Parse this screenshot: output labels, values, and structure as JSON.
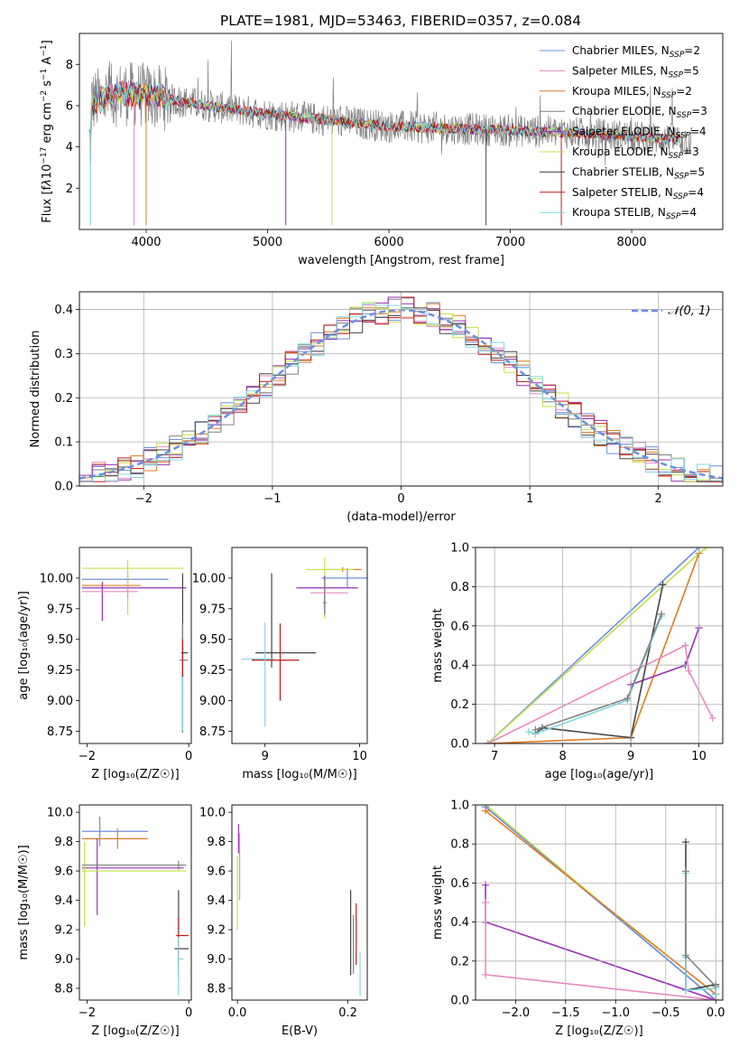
{
  "title": "PLATE=1981, MJD=53463, FIBERID=0357, z=0.084",
  "colors": {
    "Chabrier MILES": "#6b8fe0",
    "Salpeter MILES": "#e889c2",
    "Kroupa MILES": "#e07b1f",
    "Chabrier ELODIE": "#808080",
    "Salpeter ELODIE": "#9a2fb5",
    "Kroupa ELODIE": "#c3e04a",
    "Chabrier STELIB": "#444444",
    "Salpeter STELIB": "#c01818",
    "Kroupa STELIB": "#7fd8e0",
    "normal": "#6b8fe0"
  },
  "chart_data": [
    {
      "id": "spectrum",
      "type": "line",
      "xlabel": "wavelength [Angstrom, rest frame]",
      "ylabel_html": "Flux [f<tspan font-style='italic'>λ</tspan>10<tspan dy='-5' font-size='9'>−17</tspan><tspan dy='5'> erg cm</tspan><tspan dy='-5' font-size='9'>−2</tspan><tspan dy='5'> s</tspan><tspan dy='-5' font-size='9'>−1</tspan><tspan dy='5'> A</tspan><tspan dy='-5' font-size='9'>−1</tspan><tspan dy='5'>]</tspan>",
      "xlim": [
        3450,
        8750
      ],
      "ylim": [
        0,
        9.5
      ],
      "xticks": [
        4000,
        5000,
        6000,
        7000,
        8000
      ],
      "yticks": [
        2,
        4,
        6,
        8
      ],
      "legend": [
        {
          "name": "Chabrier MILES",
          "nssp": "2"
        },
        {
          "name": "Salpeter MILES",
          "nssp": "5"
        },
        {
          "name": "Kroupa MILES",
          "nssp": "2"
        },
        {
          "name": "Chabrier ELODIE",
          "nssp": "3"
        },
        {
          "name": "Salpeter ELODIE",
          "nssp": "4"
        },
        {
          "name": "Kroupa ELODIE",
          "nssp": "3"
        },
        {
          "name": "Chabrier STELIB",
          "nssp": "5"
        },
        {
          "name": "Salpeter STELIB",
          "nssp": "4"
        },
        {
          "name": "Kroupa STELIB",
          "nssp": "4"
        }
      ],
      "data_continuum": {
        "x": [
          3550,
          3800,
          4000,
          4500,
          5000,
          5500,
          6000,
          6500,
          7000,
          7500,
          8000,
          8500
        ],
        "y": [
          6.2,
          6.6,
          6.5,
          6.0,
          5.6,
          5.3,
          5.0,
          4.9,
          4.8,
          4.7,
          4.5,
          4.3
        ]
      },
      "legend_placement": "right"
    },
    {
      "id": "residuals",
      "type": "step",
      "xlabel": "(data-model)/error",
      "ylabel": "Normed distribution",
      "xlim": [
        -2.5,
        2.5
      ],
      "ylim": [
        0,
        0.44
      ],
      "xticks": [
        -2,
        -1,
        0,
        1,
        2
      ],
      "yticks": [
        0.0,
        0.1,
        0.2,
        0.3,
        0.4
      ],
      "legend": "𝒩(0, 1)",
      "legend_placement": "top-right",
      "grid": true
    },
    {
      "id": "age-vs-Z",
      "type": "errorbar",
      "xlabel": "Z [log₁₀(Z/Z☉)]",
      "ylabel": "age  [log₁₀(age/yr)]",
      "xlim": [
        -2.15,
        0.05
      ],
      "ylim": [
        8.65,
        10.25
      ],
      "xticks": [
        -2,
        0
      ],
      "yticks": [
        8.75,
        9.0,
        9.25,
        9.5,
        9.75,
        10.0
      ],
      "points": [
        {
          "m": "Chabrier MILES",
          "x": -1.2,
          "xerr": [
            0.9,
            0.8
          ],
          "y": 9.99,
          "yerr": [
            0.1,
            0.05
          ]
        },
        {
          "m": "Kroupa MILES",
          "x": -1.2,
          "xerr": [
            0.9,
            0.25
          ],
          "y": 9.94,
          "yerr": [
            0.05,
            0.08
          ]
        },
        {
          "m": "Salpeter ELODIE",
          "x": -1.7,
          "xerr": [
            0.4,
            1.65
          ],
          "y": 9.92,
          "yerr": [
            0.27,
            0.05
          ]
        },
        {
          "m": "Kroupa ELODIE",
          "x": -1.2,
          "xerr": [
            0.9,
            1.1
          ],
          "y": 10.08,
          "yerr": [
            0.38,
            0.07
          ]
        },
        {
          "m": "Salpeter MILES",
          "x": -1.2,
          "xerr": [
            0.9,
            0.2
          ],
          "y": 9.89,
          "yerr": [
            0.05,
            0.05
          ]
        },
        {
          "m": "Chabrier STELIB",
          "x": -0.12,
          "xerr": [
            0.03,
            0.1
          ],
          "y": 9.39,
          "yerr": [
            0.65,
            0.65
          ]
        },
        {
          "m": "Chabrier ELODIE",
          "x": -0.12,
          "xerr": [
            0.06,
            0.1
          ],
          "y": 9.33,
          "yerr": [
            0.55,
            0.3
          ]
        },
        {
          "m": "Salpeter STELIB",
          "x": -0.12,
          "xerr": [
            0.02,
            0.02
          ],
          "y": 9.2,
          "yerr": [
            0.45,
            0.3
          ]
        },
        {
          "m": "Kroupa STELIB",
          "x": -0.12,
          "xerr": [
            0.02,
            0.02
          ],
          "y": 9.05,
          "yerr": [
            0.3,
            0.15
          ]
        }
      ]
    },
    {
      "id": "age-vs-mass",
      "type": "errorbar",
      "xlabel": "mass [log₁₀(M/M☉)]",
      "ylabel": "",
      "xlim": [
        8.65,
        10.08
      ],
      "ylim": [
        8.65,
        10.25
      ],
      "xticks": [
        9,
        10
      ],
      "yticks": [
        8.75,
        9.0,
        9.25,
        9.5,
        9.75,
        10.0
      ],
      "points": [
        {
          "m": "Chabrier MILES",
          "x": 9.87,
          "xerr": [
            0.27,
            0.3
          ],
          "y": 10.0,
          "yerr": [
            0.08,
            0.08
          ]
        },
        {
          "m": "Kroupa MILES",
          "x": 9.82,
          "xerr": [
            0.2,
            0.2
          ],
          "y": 10.07,
          "yerr": [
            0.02,
            0.02
          ]
        },
        {
          "m": "Kroupa ELODIE",
          "x": 9.63,
          "xerr": [
            0.2,
            0.3
          ],
          "y": 10.07,
          "yerr": [
            0.4,
            0.1
          ]
        },
        {
          "m": "Salpeter ELODIE",
          "x": 9.63,
          "xerr": [
            0.3,
            0.35
          ],
          "y": 9.92,
          "yerr": [
            0.2,
            0.1
          ]
        },
        {
          "m": "Salpeter MILES",
          "x": 9.63,
          "xerr": [
            0.15,
            0.25
          ],
          "y": 9.88,
          "yerr": [
            0.02,
            0.02
          ]
        },
        {
          "m": "Chabrier ELODIE",
          "x": 9.63,
          "xerr": [
            0.02,
            0.02
          ],
          "y": 9.8,
          "yerr": [
            0.1,
            0.2
          ]
        },
        {
          "m": "Chabrier STELIB",
          "x": 9.07,
          "xerr": [
            0.17,
            0.47
          ],
          "y": 9.39,
          "yerr": [
            0.12,
            0.65
          ]
        },
        {
          "m": "Salpeter STELIB",
          "x": 9.16,
          "xerr": [
            0.3,
            0.2
          ],
          "y": 9.33,
          "yerr": [
            0.33,
            0.3
          ]
        },
        {
          "m": "Kroupa STELIB",
          "x": 9.0,
          "xerr": [
            0.25,
            0.1
          ],
          "y": 9.34,
          "yerr": [
            0.55,
            0.3
          ]
        }
      ]
    },
    {
      "id": "weight-vs-age",
      "type": "line",
      "xlabel": "age  [log₁₀(age/yr)]",
      "ylabel": "mass weight",
      "xlim": [
        6.72,
        10.35
      ],
      "ylim": [
        0,
        1.0
      ],
      "xticks": [
        7,
        8,
        9,
        10
      ],
      "yticks": [
        0.0,
        0.2,
        0.4,
        0.6,
        0.8,
        1.0
      ],
      "grid": true,
      "series": [
        {
          "m": "Chabrier MILES",
          "x": [
            6.9,
            10.0
          ],
          "y": [
            0.0,
            1.0
          ]
        },
        {
          "m": "Kroupa ELODIE",
          "x": [
            6.9,
            10.1
          ],
          "y": [
            0.0,
            1.0
          ]
        },
        {
          "m": "Kroupa MILES",
          "x": [
            6.9,
            9.0,
            10.0
          ],
          "y": [
            0.0,
            0.03,
            0.97
          ]
        },
        {
          "m": "Salpeter ELODIE",
          "x": [
            9.0,
            9.8,
            10.0
          ],
          "y": [
            0.3,
            0.4,
            0.59
          ]
        },
        {
          "m": "Salpeter MILES",
          "x": [
            6.9,
            9.8,
            9.85,
            10.2
          ],
          "y": [
            0.0,
            0.5,
            0.37,
            0.13
          ]
        },
        {
          "m": "Chabrier STELIB",
          "x": [
            7.6,
            7.7,
            9.0,
            9.47
          ],
          "y": [
            0.05,
            0.08,
            0.03,
            0.81
          ]
        },
        {
          "m": "Kroupa STELIB",
          "x": [
            7.5,
            7.6,
            8.95,
            9.45
          ],
          "y": [
            0.06,
            0.05,
            0.22,
            0.65
          ]
        },
        {
          "m": "Chabrier ELODIE",
          "x": [
            7.6,
            8.95,
            9.45
          ],
          "y": [
            0.07,
            0.23,
            0.66
          ]
        }
      ]
    },
    {
      "id": "mass-vs-Z",
      "type": "errorbar",
      "xlabel": "Z [log₁₀(Z/Z☉)]",
      "ylabel": "mass [log₁₀(M/M☉)]",
      "xlim": [
        -2.15,
        0.05
      ],
      "ylim": [
        8.72,
        10.05
      ],
      "xticks": [
        -2,
        0
      ],
      "yticks": [
        8.8,
        9.0,
        9.2,
        9.4,
        9.6,
        9.8,
        10.0
      ],
      "points": [
        {
          "m": "Chabrier MILES",
          "x": -1.75,
          "xerr": [
            0.35,
            0.95
          ],
          "y": 9.87,
          "yerr": [
            0.1,
            0.1
          ]
        },
        {
          "m": "Kroupa MILES",
          "x": -1.4,
          "xerr": [
            0.7,
            0.6
          ],
          "y": 9.82,
          "yerr": [
            0.07,
            0.07
          ]
        },
        {
          "m": "Salpeter ELODIE",
          "x": -1.8,
          "xerr": [
            0.3,
            1.7
          ],
          "y": 9.62,
          "yerr": [
            0.32,
            0.2
          ]
        },
        {
          "m": "Kroupa ELODIE",
          "x": -2.05,
          "xerr": [
            0.05,
            2.0
          ],
          "y": 9.6,
          "yerr": [
            0.38,
            0.2
          ]
        },
        {
          "m": "Chabrier ELODIE",
          "x": -0.2,
          "xerr": [
            1.9,
            0.15
          ],
          "y": 9.64,
          "yerr": [
            0.03,
            0.03
          ]
        },
        {
          "m": "Chabrier STELIB",
          "x": -0.2,
          "xerr": [
            0.08,
            0.2
          ],
          "y": 9.07,
          "yerr": [
            0.2,
            0.4
          ]
        },
        {
          "m": "Salpeter STELIB",
          "x": -0.2,
          "xerr": [
            0.05,
            0.2
          ],
          "y": 9.16,
          "yerr": [
            0.2,
            0.12
          ]
        },
        {
          "m": "Kroupa STELIB",
          "x": -0.2,
          "xerr": [
            0.02,
            0.1
          ],
          "y": 9.0,
          "yerr": [
            0.25,
            0.15
          ]
        }
      ]
    },
    {
      "id": "mass-vs-EBV",
      "type": "errorbar",
      "xlabel": "E(B-V)",
      "ylabel": "",
      "xlim": [
        -0.01,
        0.235
      ],
      "ylim": [
        8.72,
        10.05
      ],
      "xticks": [
        0.0,
        0.2
      ],
      "yticks": [
        8.8,
        9.0,
        9.2,
        9.4,
        9.6,
        9.8,
        10.0
      ],
      "points": [
        {
          "m": "Salpeter ELODIE",
          "x": 0.002,
          "yrange": [
            9.72,
            9.92
          ]
        },
        {
          "m": "Salpeter MILES",
          "x": 0.004,
          "yrange": [
            9.4,
            9.86
          ]
        },
        {
          "m": "Kroupa ELODIE",
          "x": 0.0,
          "yrange": [
            9.2,
            9.7
          ]
        },
        {
          "m": "Chabrier STELIB",
          "x": 0.205,
          "yrange": [
            8.89,
            9.47
          ]
        },
        {
          "m": "Salpeter STELIB",
          "x": 0.215,
          "yrange": [
            8.96,
            9.38
          ]
        },
        {
          "m": "Chabrier ELODIE",
          "x": 0.21,
          "yrange": [
            8.9,
            9.3
          ]
        },
        {
          "m": "Kroupa STELIB",
          "x": 0.222,
          "yrange": [
            8.75,
            9.05
          ]
        }
      ]
    },
    {
      "id": "weight-vs-Z",
      "type": "line",
      "xlabel": "Z [log₁₀(Z/Z☉)]",
      "ylabel": "mass weight",
      "xlim": [
        -2.4,
        0.07
      ],
      "ylim": [
        0,
        1.0
      ],
      "xticks": [
        -2.0,
        -1.5,
        -1.0,
        -0.5,
        0.0
      ],
      "xticklabels": [
        "−2.0",
        "−1.5",
        "−1.0",
        "−0.5",
        "0.0"
      ],
      "yticks": [
        0.0,
        0.2,
        0.4,
        0.6,
        0.8,
        1.0
      ],
      "grid": true,
      "series": [
        {
          "m": "Kroupa ELODIE",
          "x": [
            -2.3,
            0.0
          ],
          "y": [
            1.0,
            0.0
          ]
        },
        {
          "m": "Chabrier MILES",
          "x": [
            -2.3,
            0.0
          ],
          "y": [
            0.99,
            0.0
          ]
        },
        {
          "m": "Kroupa MILES",
          "x": [
            -2.3,
            0.0
          ],
          "y": [
            0.97,
            0.03
          ]
        },
        {
          "m": "Salpeter ELODIE",
          "x": [
            -2.3,
            -2.3,
            -2.3,
            0.0
          ],
          "y": [
            0.59,
            0.4,
            0.4,
            0.0
          ]
        },
        {
          "m": "Salpeter MILES",
          "x": [
            -2.3,
            -2.3,
            0.0
          ],
          "y": [
            0.5,
            0.13,
            0.0
          ]
        },
        {
          "m": "Chabrier STELIB",
          "x": [
            -0.3,
            -0.3,
            -0.3,
            0.0,
            0.0
          ],
          "y": [
            0.81,
            0.22,
            0.05,
            0.08,
            0.03
          ]
        },
        {
          "m": "Kroupa STELIB",
          "x": [
            -0.3,
            -0.3,
            -0.3,
            0.0,
            0.0
          ],
          "y": [
            0.65,
            0.22,
            0.05,
            0.06,
            0.03
          ]
        },
        {
          "m": "Chabrier ELODIE",
          "x": [
            -0.3,
            -0.3,
            0.0
          ],
          "y": [
            0.66,
            0.23,
            0.07
          ]
        }
      ]
    }
  ]
}
